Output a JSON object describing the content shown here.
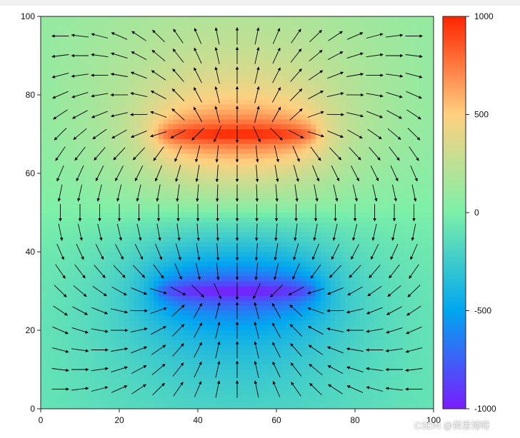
{
  "chart_data": {
    "type": "heatmap",
    "subtype": "scalar field with quiver overlay (electric potential of two parallel line charges)",
    "title": "",
    "xlabel": "",
    "ylabel": "",
    "xlim": [
      0,
      100
    ],
    "ylim": [
      0,
      100
    ],
    "x_ticks": [
      "0",
      "20",
      "40",
      "60",
      "80",
      "100"
    ],
    "y_ticks": [
      "0",
      "20",
      "40",
      "60",
      "80",
      "100"
    ],
    "x_tick_values": [
      0,
      20,
      40,
      60,
      80,
      100
    ],
    "y_tick_values": [
      0,
      20,
      40,
      60,
      80,
      100
    ],
    "grid": false,
    "colormap": "rainbow",
    "colormap_stops": [
      "#7a1cff",
      "#00a6f0",
      "#7cf0a8",
      "#ffd080",
      "#ff2400"
    ],
    "color_range": [
      -1000,
      1000
    ],
    "colorbar_ticks": [
      "1000",
      "500",
      "0",
      "-500",
      "-1000"
    ],
    "colorbar_tick_values": [
      1000,
      500,
      0,
      -500,
      -1000
    ],
    "sources": [
      {
        "name": "positive",
        "x_range": [
          30,
          70
        ],
        "y": 70,
        "value": 1000
      },
      {
        "name": "negative",
        "x_range": [
          30,
          70
        ],
        "y": 30,
        "value": -1000
      }
    ],
    "arrow_grid": {
      "x_start": 5,
      "x_end": 95,
      "y_start": 5,
      "y_end": 95,
      "step": 5
    },
    "arrow_color": "#000000"
  },
  "watermark": "CSDN @黄思博呀"
}
